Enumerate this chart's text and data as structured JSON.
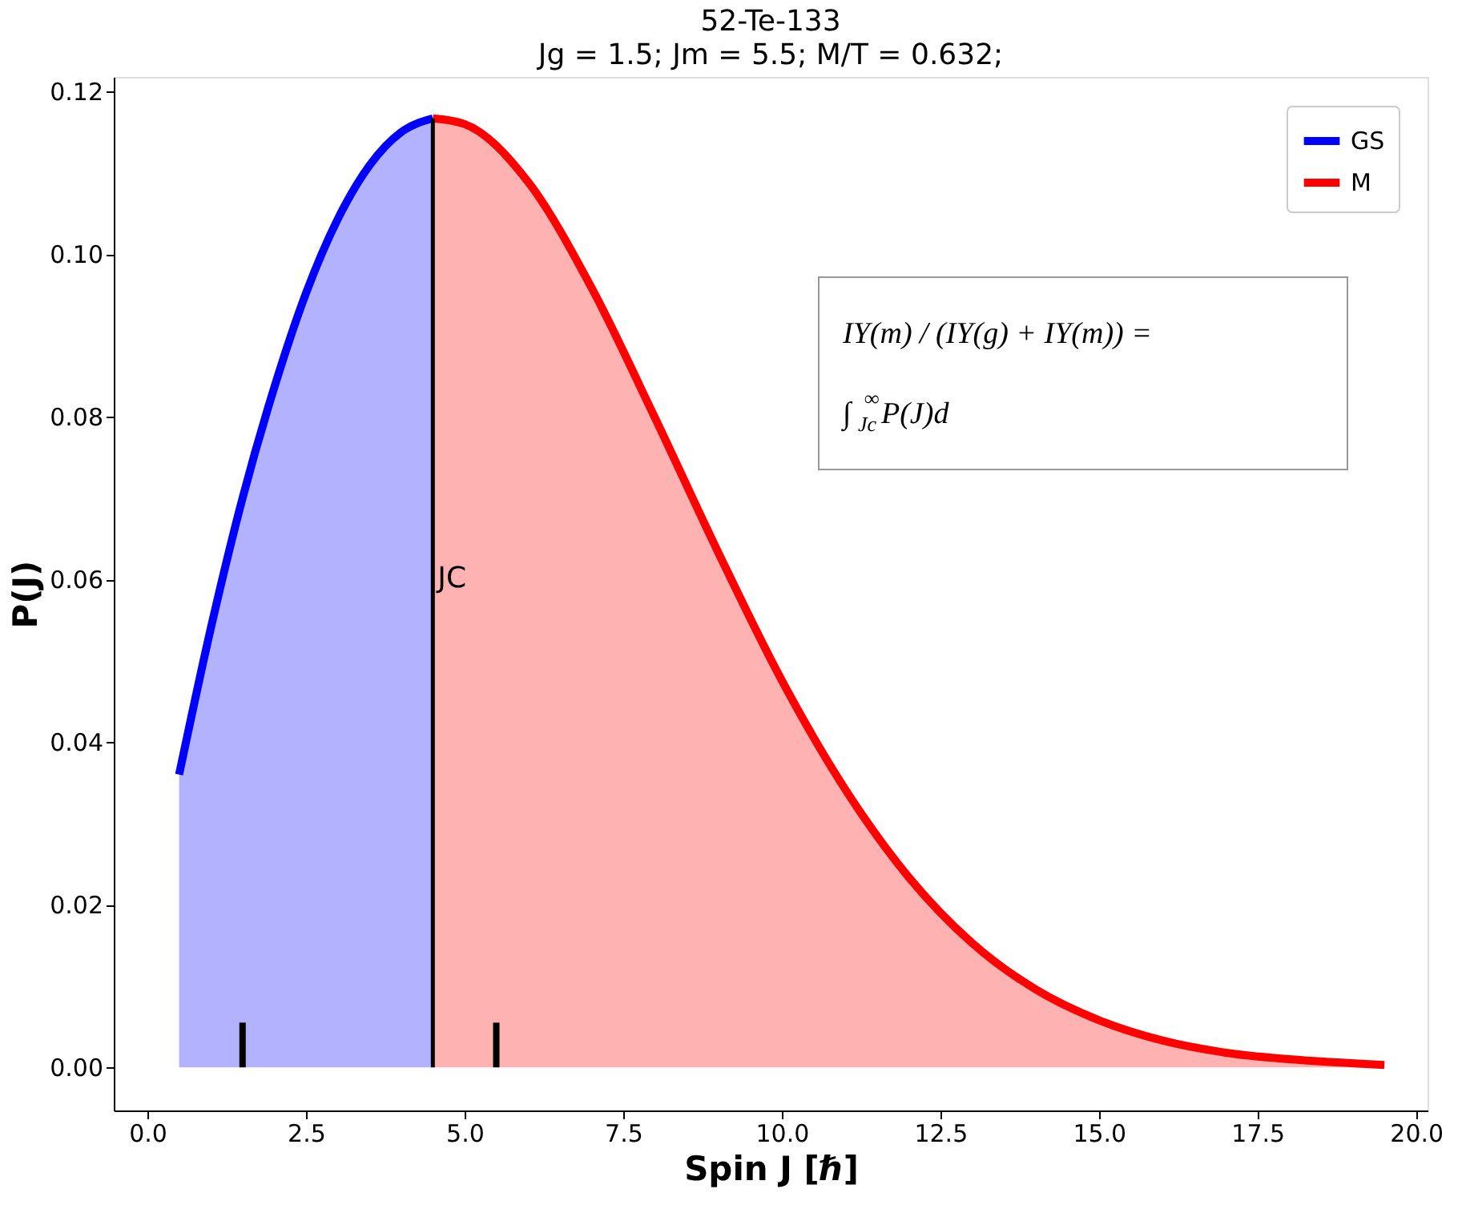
{
  "chart_data": {
    "type": "area",
    "title": "52-Te-133",
    "subtitle": "Jg = 1.5; Jm = 5.5; M/T = 0.632;",
    "xlabel": "Spin J [ℏ]",
    "ylabel": "P(J)",
    "series": [
      {
        "name": "GS",
        "color": "#0000ff",
        "x": [
          0.5,
          1,
          1.5,
          2,
          2.5,
          3,
          3.5,
          4,
          4.5
        ],
        "values": [
          0.036,
          0.054,
          0.07,
          0.0836,
          0.0952,
          0.1043,
          0.1109,
          0.115,
          0.1167
        ]
      },
      {
        "name": "M",
        "color": "#ff0000",
        "x": [
          4.5,
          5,
          6,
          7,
          8,
          9,
          10,
          11,
          12,
          13,
          14,
          15,
          16,
          17,
          18,
          19.5
        ],
        "values": [
          0.1167,
          0.116,
          0.1089,
          0.0959,
          0.0799,
          0.0633,
          0.0476,
          0.0342,
          0.0234,
          0.0153,
          0.0096,
          0.0058,
          0.0033,
          0.0018,
          0.001,
          0.0003
        ]
      },
      {
        "type": "line",
        "color": "#000000",
        "x": [
          4.5,
          4.5
        ],
        "values": [
          0,
          0.1167
        ]
      },
      {
        "type": "bar",
        "color": "#000000",
        "x": [
          1.5,
          5.5
        ],
        "values": [
          0.0055,
          0.0055
        ]
      }
    ],
    "annotations": [
      {
        "text": "JC",
        "x": 4.5,
        "y": 0.06
      },
      "IY(m) / (IY(g) + IY(m)) = ∫$_{Jc}$$^{∞}$P(J)d"
    ],
    "xlim": [
      -0.53,
      20.18
    ],
    "ylim": [
      -0.0053,
      0.1218
    ],
    "xticks": [
      {
        "value": 0,
        "label": "0.0"
      },
      {
        "value": 2.5,
        "label": "2.5"
      },
      {
        "value": 5,
        "label": "5.0"
      },
      {
        "value": 7.5,
        "label": "7.5"
      },
      {
        "value": 10,
        "label": "10.0"
      },
      {
        "value": 12.5,
        "label": "12.5"
      },
      {
        "value": 15,
        "label": "15.0"
      },
      {
        "value": 17.5,
        "label": "17.5"
      },
      {
        "value": 20,
        "label": "20.0"
      }
    ],
    "yticks": [
      {
        "value": 0,
        "label": "0.00"
      },
      {
        "value": 0.02,
        "label": "0.02"
      },
      {
        "value": 0.04,
        "label": "0.04"
      },
      {
        "value": 0.06,
        "label": "0.06"
      },
      {
        "value": 0.08,
        "label": "0.08"
      },
      {
        "value": 0.1,
        "label": "0.10"
      },
      {
        "value": 0.12,
        "label": "0.12"
      }
    ],
    "grid": false,
    "legend": "top right"
  }
}
